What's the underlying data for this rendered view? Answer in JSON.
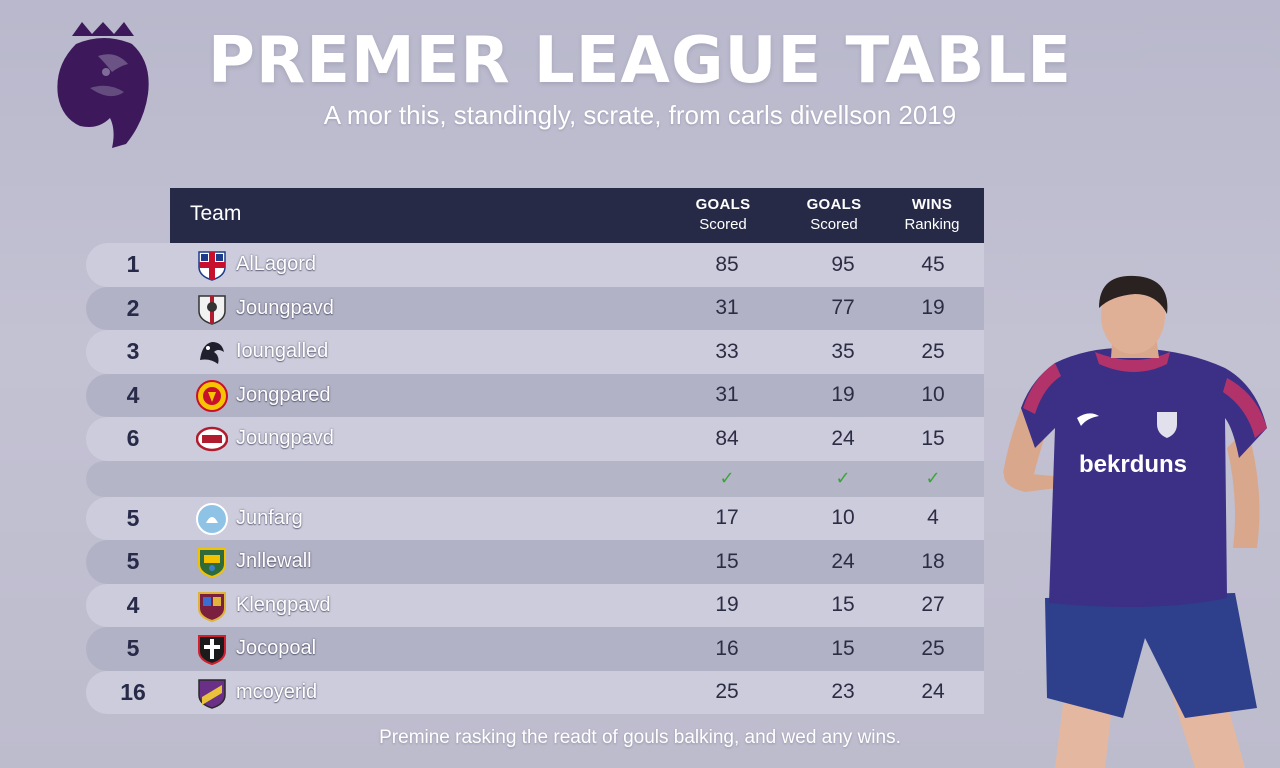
{
  "title": "PREMER LEAGUE TABLE",
  "subtitle": "A mor this, standingly, scrate, from carls divellson 2019",
  "header": {
    "team": "Team",
    "col1": {
      "line1": "GOALS",
      "line2": "Scored"
    },
    "col2": {
      "line1": "GOALS",
      "line2": "Scored"
    },
    "col3": {
      "line1": "WINS",
      "line2": "Ranking"
    }
  },
  "rows": [
    {
      "rank": "1",
      "team": "AlLagord",
      "v1": "85",
      "v2": "95",
      "v3": "45"
    },
    {
      "rank": "2",
      "team": "Joungpavd",
      "v1": "31",
      "v2": "77",
      "v3": "19"
    },
    {
      "rank": "3",
      "team": "Ioungalled",
      "v1": "33",
      "v2": "35",
      "v3": "25"
    },
    {
      "rank": "4",
      "team": "Jongpared",
      "v1": "31",
      "v2": "19",
      "v3": "10"
    },
    {
      "rank": "6",
      "team": "Joungpavd",
      "v1": "84",
      "v2": "24",
      "v3": "15"
    },
    {
      "rank": "5",
      "team": "Junfarg",
      "v1": "17",
      "v2": "10",
      "v3": "4"
    },
    {
      "rank": "5",
      "team": "Jnllewall",
      "v1": "15",
      "v2": "24",
      "v3": "18"
    },
    {
      "rank": "4",
      "team": "Klengpavd",
      "v1": "19",
      "v2": "15",
      "v3": "27"
    },
    {
      "rank": "5",
      "team": "Jocopoal",
      "v1": "16",
      "v2": "15",
      "v3": "25"
    },
    {
      "rank": "16",
      "team": "mcoyerid",
      "v1": "25",
      "v2": "23",
      "v3": "24"
    }
  ],
  "check_row": {
    "c1": "✓",
    "c2": "✓",
    "c3": "✓"
  },
  "footer": "Premine rasking the readt of gouls balking, and wed any wins.",
  "player": {
    "shirt_text": "bekrduns"
  },
  "colors": {
    "header_bg": "#262a47",
    "accent_purple": "#3d195b",
    "check_green": "#3aa63a"
  }
}
